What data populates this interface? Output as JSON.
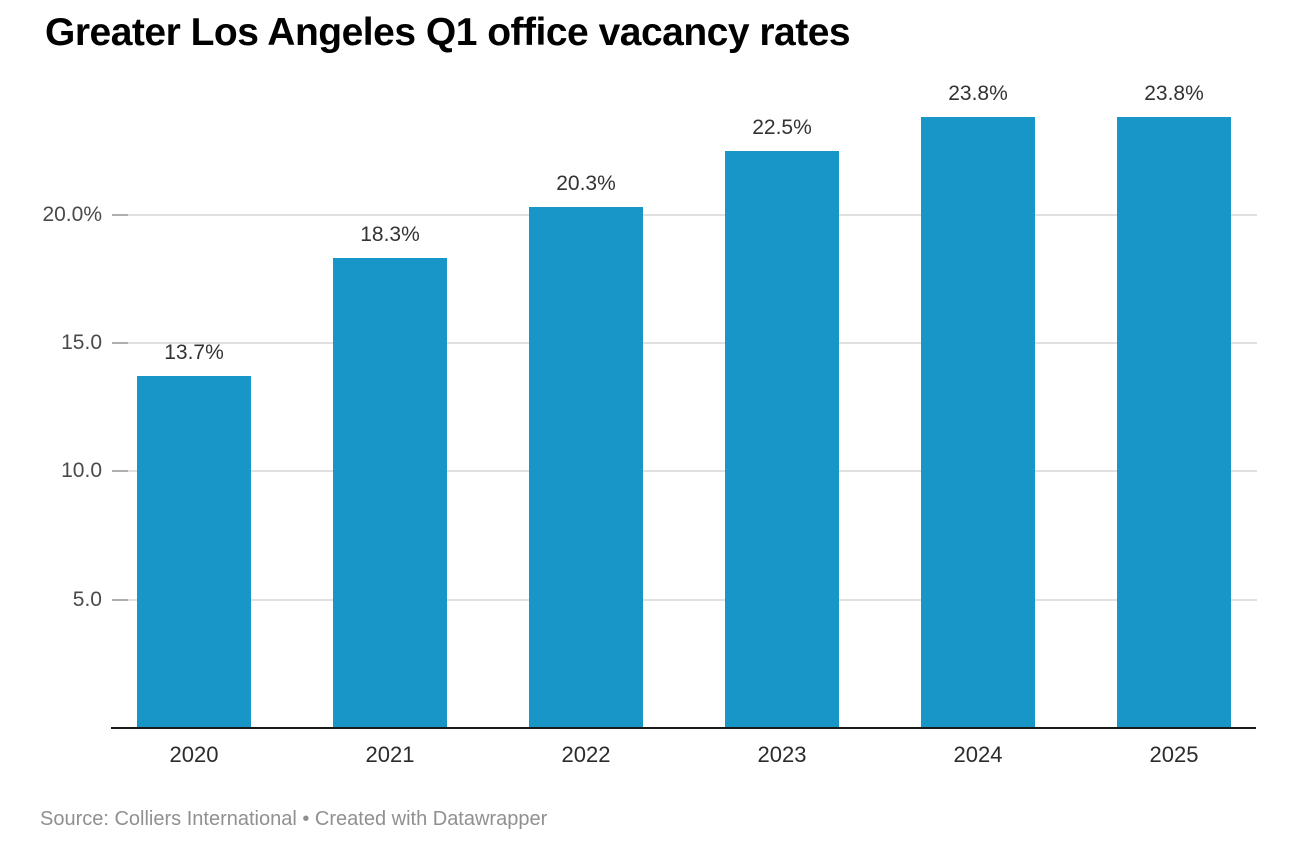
{
  "header": {
    "title": "Greater Los Angeles Q1 office vacancy rates"
  },
  "chart_data": {
    "type": "bar",
    "title": "Greater Los Angeles Q1 office vacancy rates",
    "categories": [
      "2020",
      "2021",
      "2022",
      "2023",
      "2024",
      "2025"
    ],
    "values": [
      13.7,
      18.3,
      20.3,
      22.5,
      23.8,
      23.8
    ],
    "value_labels": [
      "13.7%",
      "18.3%",
      "20.3%",
      "22.5%",
      "23.8%",
      "23.8%"
    ],
    "xlabel": "",
    "ylabel": "",
    "ylim": [
      0,
      25
    ],
    "yticks": [
      {
        "value": 5,
        "label": "5.0"
      },
      {
        "value": 10,
        "label": "10.0"
      },
      {
        "value": 15,
        "label": "15.0"
      },
      {
        "value": 20,
        "label": "20.0%"
      }
    ],
    "grid": true,
    "legend_position": "none",
    "bar_color": "#1996c8",
    "axis_color": "#1a1a1a",
    "gridline_color": "#e0e0e0"
  },
  "footer": {
    "source": "Source: Colliers International • Created with Datawrapper"
  }
}
